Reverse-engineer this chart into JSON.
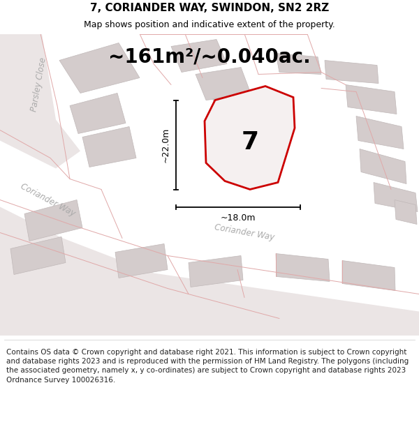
{
  "title": "7, CORIANDER WAY, SWINDON, SN2 2RZ",
  "subtitle": "Map shows position and indicative extent of the property.",
  "area_text": "~161m²/~0.040ac.",
  "plot_number": "7",
  "dim_width": "~18.0m",
  "dim_height": "~22.0m",
  "street_label_parsley": "Parsley Close",
  "street_label_coriander_left": "Coriander Way",
  "street_label_coriander_bottom": "Coriander Way",
  "footer": "Contains OS data © Crown copyright and database right 2021. This information is subject to Crown copyright and database rights 2023 and is reproduced with the permission of HM Land Registry. The polygons (including the associated geometry, namely x, y co-ordinates) are subject to Crown copyright and database rights 2023 Ordnance Survey 100026316.",
  "map_bg": "#f2eeee",
  "road_bg": "#e8e2e2",
  "plot_fill": "#f0ecec",
  "plot_edge": "#cc0000",
  "building_fill": "#d4cccc",
  "building_edge": "#c0b8b8",
  "road_line_color": "#e0a8a8",
  "text_color": "#000000",
  "street_color": "#aaaaaa",
  "dim_color": "#000000",
  "title_fontsize": 11,
  "subtitle_fontsize": 9,
  "area_fontsize": 20,
  "footer_fontsize": 7.5,
  "plot_lw": 2.0,
  "road_lw": 0.7
}
